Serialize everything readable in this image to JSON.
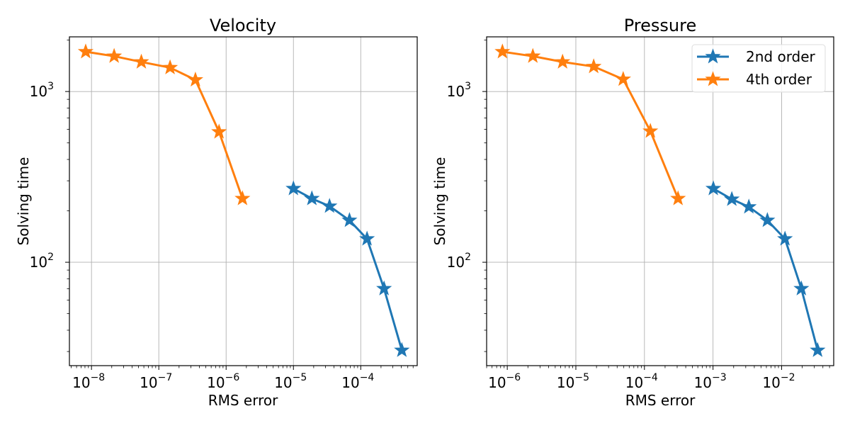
{
  "figure": {
    "background": "#ffffff"
  },
  "colors": {
    "2nd order": "#1f77b4",
    "4th order": "#ff7f0e",
    "grid": "#b0b0b0"
  },
  "chart_data": [
    {
      "type": "line",
      "title": "Velocity",
      "xlabel": "RMS error",
      "ylabel": "Solving time",
      "xscale": "log",
      "yscale": "log",
      "xlim": [
        4.7e-09,
        0.00069
      ],
      "ylim": [
        24.8,
        2090
      ],
      "xticks": [
        {
          "value": 1e-08,
          "base": "10",
          "exp": "−8"
        },
        {
          "value": 1e-07,
          "base": "10",
          "exp": "−7"
        },
        {
          "value": 1e-06,
          "base": "10",
          "exp": "−6"
        },
        {
          "value": 1e-05,
          "base": "10",
          "exp": "−5"
        },
        {
          "value": 0.0001,
          "base": "10",
          "exp": "−4"
        }
      ],
      "yticks": [
        {
          "value": 100,
          "base": "10",
          "exp": "2"
        },
        {
          "value": 1000,
          "base": "10",
          "exp": "3"
        }
      ],
      "grid": true,
      "legend": null,
      "marker": "star",
      "series": [
        {
          "name": "2nd order",
          "x": [
            1e-05,
            1.88e-05,
            3.44e-05,
            6.8e-05,
            0.000124,
            0.000222,
            0.000408
          ],
          "y": [
            270,
            236,
            213,
            176,
            137,
            70,
            30.5
          ]
        },
        {
          "name": "4th order",
          "x": [
            8.2e-09,
            2.17e-08,
            5.5e-08,
            1.47e-07,
            3.5e-07,
            7.85e-07,
            1.75e-06
          ],
          "y": [
            1710,
            1610,
            1490,
            1380,
            1170,
            580,
            236
          ]
        }
      ]
    },
    {
      "type": "line",
      "title": "Pressure",
      "xlabel": "RMS error",
      "ylabel": "Solving time",
      "xscale": "log",
      "yscale": "log",
      "xlim": [
        5e-07,
        0.0575
      ],
      "ylim": [
        24.8,
        2090
      ],
      "xticks": [
        {
          "value": 1e-06,
          "base": "10",
          "exp": "−6"
        },
        {
          "value": 1e-05,
          "base": "10",
          "exp": "−5"
        },
        {
          "value": 0.0001,
          "base": "10",
          "exp": "−4"
        },
        {
          "value": 0.001,
          "base": "10",
          "exp": "−3"
        },
        {
          "value": 0.01,
          "base": "10",
          "exp": "−2"
        }
      ],
      "yticks": [
        {
          "value": 100,
          "base": "10",
          "exp": "2"
        },
        {
          "value": 1000,
          "base": "10",
          "exp": "3"
        }
      ],
      "grid": true,
      "legend": {
        "position": "top-right",
        "entries": [
          "2nd order",
          "4th order"
        ]
      },
      "marker": "star",
      "series": [
        {
          "name": "2nd order",
          "x": [
            0.00101,
            0.00188,
            0.00333,
            0.0062,
            0.0112,
            0.0194,
            0.0335
          ],
          "y": [
            270,
            234,
            211,
            176,
            137,
            70,
            30.5
          ]
        },
        {
          "name": "4th order",
          "x": [
            8.5e-07,
            2.36e-06,
            6.4e-06,
            1.82e-05,
            4.9e-05,
            0.000122,
            0.000309
          ],
          "y": [
            1710,
            1610,
            1490,
            1400,
            1180,
            586,
            236
          ]
        }
      ]
    }
  ]
}
